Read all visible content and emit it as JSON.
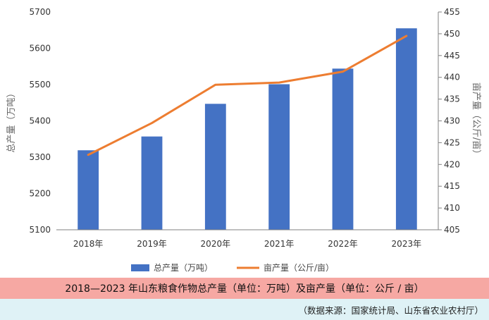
{
  "chart_data": {
    "type": "bar+line",
    "categories": [
      "2018年",
      "2019年",
      "2020年",
      "2021年",
      "2022年",
      "2023年"
    ],
    "series": [
      {
        "name": "总产量（万吨）",
        "type": "bar",
        "axis": "left",
        "values": [
          5319,
          5357,
          5447,
          5501,
          5544,
          5655
        ]
      },
      {
        "name": "亩产量（公斤/亩）",
        "type": "line",
        "axis": "right",
        "values": [
          422.2,
          429.5,
          438.3,
          438.8,
          441.3,
          449.5
        ]
      }
    ],
    "left_axis": {
      "label": "总产量（万吨）",
      "min": 5100,
      "max": 5700,
      "ticks": [
        5100,
        5200,
        5300,
        5400,
        5500,
        5600,
        5700
      ]
    },
    "right_axis": {
      "label": "亩产量（公斤/亩）",
      "min": 405,
      "max": 455,
      "ticks": [
        405,
        410,
        415,
        420,
        425,
        430,
        435,
        440,
        445,
        450,
        455
      ]
    },
    "colors": {
      "bar": "#4472c4",
      "line": "#ed7d31",
      "axis": "#808080"
    },
    "legend_position": "bottom"
  },
  "caption": "2018—2023 年山东粮食作物总产量（单位：万吨）及亩产量（单位：公斤 / 亩）",
  "source": "（数据来源：国家统计局、山东省农业农村厅）"
}
